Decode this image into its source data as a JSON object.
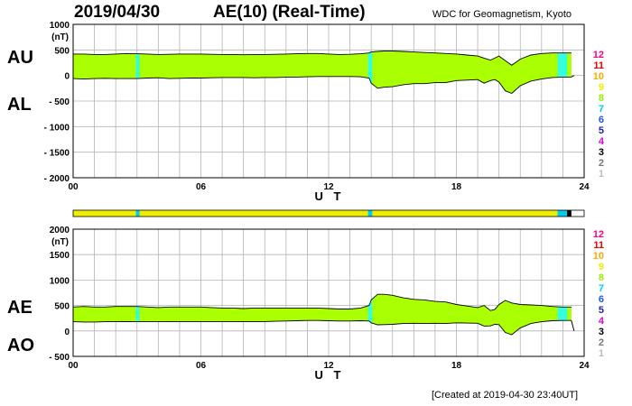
{
  "header": {
    "date": "2019/04/30",
    "title": "AE(10) (Real-Time)",
    "institution": "WDC for Geomagnetism, Kyoto"
  },
  "footer": {
    "created": "[Created at 2019-04-30 23:40UT]"
  },
  "colors": {
    "fill": "#aaff00",
    "highlight": "#33ffdd",
    "grid": "#b4b4b4",
    "levels": [
      "#bbbbbb",
      "#777777",
      "#000000",
      "#dd00dd",
      "#2222aa",
      "#2255ee",
      "#00ccee",
      "#99ee00",
      "#eeee00",
      "#ffaa00",
      "#ee0000",
      "#ff0088"
    ]
  },
  "chart_data": [
    {
      "id": "au_al",
      "type": "area",
      "xlabel": "U T",
      "ylabel": "(nT)",
      "series_labels": [
        "AU",
        "AL"
      ],
      "xlim": [
        0,
        24
      ],
      "ylim": [
        -2000,
        1000
      ],
      "xticks": [
        "00",
        "06",
        "12",
        "18",
        "24"
      ],
      "yticks": [
        "1000",
        "500",
        "0",
        "- 500",
        "- 1000",
        "- 1500",
        "- 2000"
      ],
      "upper_name": "AU",
      "lower_name": "AL",
      "hours": [
        0,
        0.5,
        1,
        1.5,
        2,
        2.5,
        3,
        3.5,
        4,
        4.5,
        5,
        5.5,
        6,
        6.5,
        7,
        7.5,
        8,
        8.5,
        9,
        9.5,
        10,
        10.5,
        11,
        11.5,
        12,
        12.5,
        13,
        13.5,
        13.9,
        14,
        14.3,
        14.6,
        15,
        15.5,
        16,
        16.5,
        17,
        17.5,
        18,
        18.5,
        19,
        19.3,
        19.6,
        19.8,
        20,
        20.3,
        20.6,
        21,
        21.5,
        22,
        22.5,
        23,
        23.4
      ],
      "upper": [
        420,
        420,
        410,
        410,
        420,
        430,
        425,
        420,
        410,
        415,
        420,
        420,
        420,
        415,
        410,
        410,
        405,
        410,
        410,
        415,
        420,
        425,
        430,
        430,
        420,
        410,
        415,
        425,
        440,
        460,
        470,
        480,
        480,
        470,
        460,
        450,
        440,
        430,
        420,
        400,
        380,
        340,
        300,
        340,
        380,
        290,
        200,
        320,
        400,
        430,
        440,
        440,
        440
      ],
      "lower": [
        -60,
        -70,
        -60,
        -55,
        -60,
        -60,
        -60,
        -50,
        -45,
        -60,
        -55,
        -50,
        -50,
        -45,
        -40,
        -40,
        -40,
        -45,
        -40,
        -40,
        -35,
        -30,
        -25,
        -20,
        -20,
        -20,
        -20,
        -25,
        -50,
        -150,
        -250,
        -230,
        -220,
        -180,
        -160,
        -160,
        -140,
        -140,
        -100,
        -90,
        -80,
        -150,
        -100,
        -80,
        -130,
        -300,
        -350,
        -200,
        -110,
        -70,
        -40,
        -30,
        -30
      ]
    },
    {
      "id": "ae_ao",
      "type": "area",
      "xlabel": "U T",
      "ylabel": "(nT)",
      "series_labels": [
        "AE",
        "AO"
      ],
      "xlim": [
        0,
        24
      ],
      "ylim": [
        -500,
        2000
      ],
      "xticks": [
        "00",
        "06",
        "12",
        "18",
        "24"
      ],
      "yticks": [
        "2000",
        "1500",
        "1000",
        "500",
        "0",
        "- 500"
      ],
      "upper_name": "AE",
      "lower_name": "AO",
      "hours": [
        0,
        0.5,
        1,
        1.5,
        2,
        2.5,
        3,
        3.5,
        4,
        4.5,
        5,
        5.5,
        6,
        6.5,
        7,
        7.5,
        8,
        8.5,
        9,
        9.5,
        10,
        10.5,
        11,
        11.5,
        12,
        12.5,
        13,
        13.5,
        13.9,
        14,
        14.3,
        14.6,
        15,
        15.5,
        16,
        16.5,
        17,
        17.5,
        18,
        18.5,
        19,
        19.3,
        19.6,
        19.8,
        20,
        20.3,
        20.6,
        21,
        21.5,
        22,
        22.5,
        23,
        23.4
      ],
      "upper": [
        470,
        480,
        470,
        470,
        480,
        480,
        480,
        470,
        460,
        470,
        470,
        470,
        470,
        460,
        450,
        450,
        440,
        450,
        450,
        450,
        450,
        450,
        450,
        450,
        440,
        430,
        430,
        450,
        500,
        610,
        720,
        720,
        700,
        650,
        620,
        610,
        580,
        570,
        520,
        490,
        460,
        500,
        400,
        420,
        520,
        600,
        550,
        520,
        510,
        500,
        480,
        470,
        470
      ],
      "lower": [
        180,
        175,
        175,
        180,
        180,
        185,
        180,
        185,
        185,
        180,
        185,
        185,
        185,
        185,
        185,
        185,
        180,
        180,
        185,
        190,
        195,
        200,
        205,
        205,
        200,
        195,
        195,
        200,
        195,
        160,
        120,
        125,
        130,
        145,
        150,
        145,
        150,
        145,
        160,
        155,
        150,
        95,
        100,
        130,
        125,
        -30,
        -75,
        60,
        145,
        180,
        200,
        205,
        205
      ]
    }
  ],
  "status_bar": {
    "segments": [
      {
        "from": 0,
        "to": 23.2,
        "level": "9"
      },
      {
        "from": 2.95,
        "to": 3.12,
        "level": "7"
      },
      {
        "from": 13.85,
        "to": 14.05,
        "level": "7"
      },
      {
        "from": 22.75,
        "to": 23.2,
        "level": "7"
      },
      {
        "from": 23.2,
        "to": 23.4,
        "level": "3"
      }
    ]
  },
  "legend_levels": [
    "1",
    "2",
    "3",
    "4",
    "5",
    "6",
    "7",
    "8",
    "9",
    "10",
    "11",
    "12"
  ]
}
